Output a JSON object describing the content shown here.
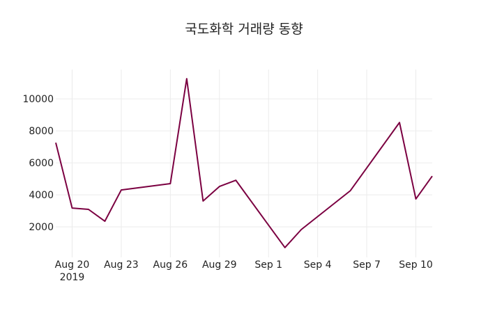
{
  "chart_data": {
    "type": "line",
    "title": "국도화학 거래량 동향",
    "x": [
      "2019-08-19",
      "2019-08-20",
      "2019-08-21",
      "2019-08-22",
      "2019-08-23",
      "2019-08-26",
      "2019-08-27",
      "2019-08-28",
      "2019-08-29",
      "2019-08-30",
      "2019-09-02",
      "2019-09-03",
      "2019-09-06",
      "2019-09-09",
      "2019-09-10",
      "2019-09-11"
    ],
    "series": [
      {
        "name": "거래량",
        "color": "#7b0041",
        "values": [
          7260,
          3170,
          3090,
          2350,
          4300,
          4700,
          11260,
          3610,
          4520,
          4910,
          700,
          1830,
          4260,
          8520,
          3740,
          5170
        ]
      }
    ],
    "xlim": [
      "2019-08-19",
      "2019-09-11"
    ],
    "xticks": [
      {
        "value": "2019-08-20",
        "label": "Aug 20\n2019"
      },
      {
        "value": "2019-08-23",
        "label": "Aug 23"
      },
      {
        "value": "2019-08-26",
        "label": "Aug 26"
      },
      {
        "value": "2019-08-29",
        "label": "Aug 29"
      },
      {
        "value": "2019-09-01",
        "label": "Sep 1"
      },
      {
        "value": "2019-09-04",
        "label": "Sep 4"
      },
      {
        "value": "2019-09-07",
        "label": "Sep 7"
      },
      {
        "value": "2019-09-10",
        "label": "Sep 10"
      }
    ],
    "ylim": [
      90,
      11830
    ],
    "yticks": [
      2000,
      4000,
      6000,
      8000,
      10000
    ],
    "grid": true
  }
}
